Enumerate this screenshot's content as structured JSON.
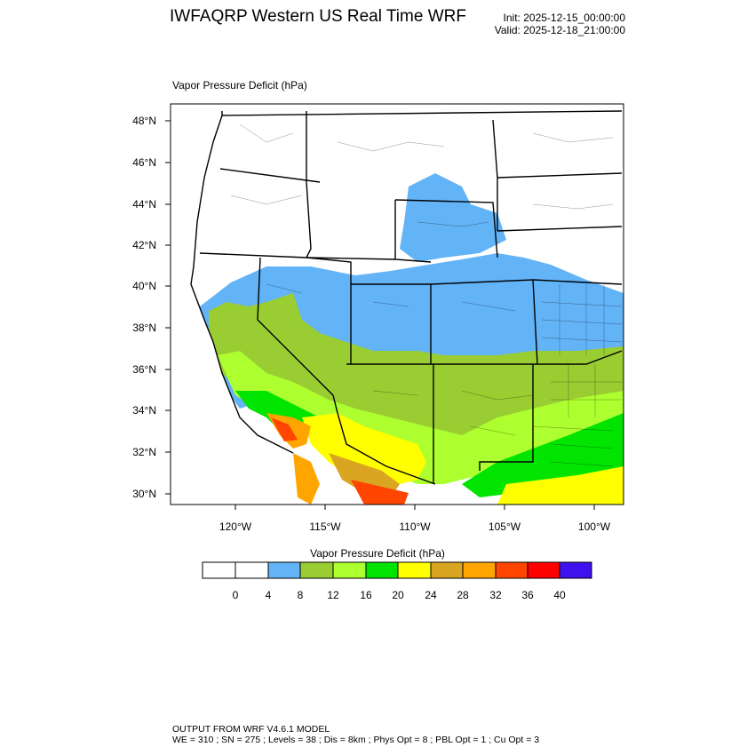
{
  "header": {
    "title": "IWFAQRP Western US Real Time WRF",
    "init": "Init: 2025-12-15_00:00:00",
    "valid": "Valid: 2025-12-18_21:00:00"
  },
  "panel": {
    "title": "Vapor Pressure Deficit   (hPa)"
  },
  "axes": {
    "lat_labels": [
      "48°N",
      "46°N",
      "44°N",
      "42°N",
      "40°N",
      "38°N",
      "36°N",
      "34°N",
      "32°N",
      "30°N"
    ],
    "lon_labels": [
      "120°W",
      "115°W",
      "110°W",
      "105°W",
      "100°W"
    ]
  },
  "colorbar": {
    "title": "Vapor Pressure Deficit  (hPa)",
    "labels": [
      "0",
      "4",
      "8",
      "12",
      "16",
      "20",
      "24",
      "28",
      "32",
      "36",
      "40"
    ],
    "colors": [
      "#ffffff",
      "#ffffff",
      "#63b3f7",
      "#9acd32",
      "#adff2f",
      "#00e400",
      "#ffff00",
      "#daa520",
      "#ffa500",
      "#ff4500",
      "#ff0000",
      "#4010ee"
    ]
  },
  "footer": {
    "line1": "OUTPUT FROM WRF V4.6.1 MODEL",
    "line2": "WE = 310 ; SN = 275 ; Levels = 38 ; Dis = 8km ; Phys Opt = 8 ; PBL Opt = 1 ; Cu Opt = 3"
  }
}
